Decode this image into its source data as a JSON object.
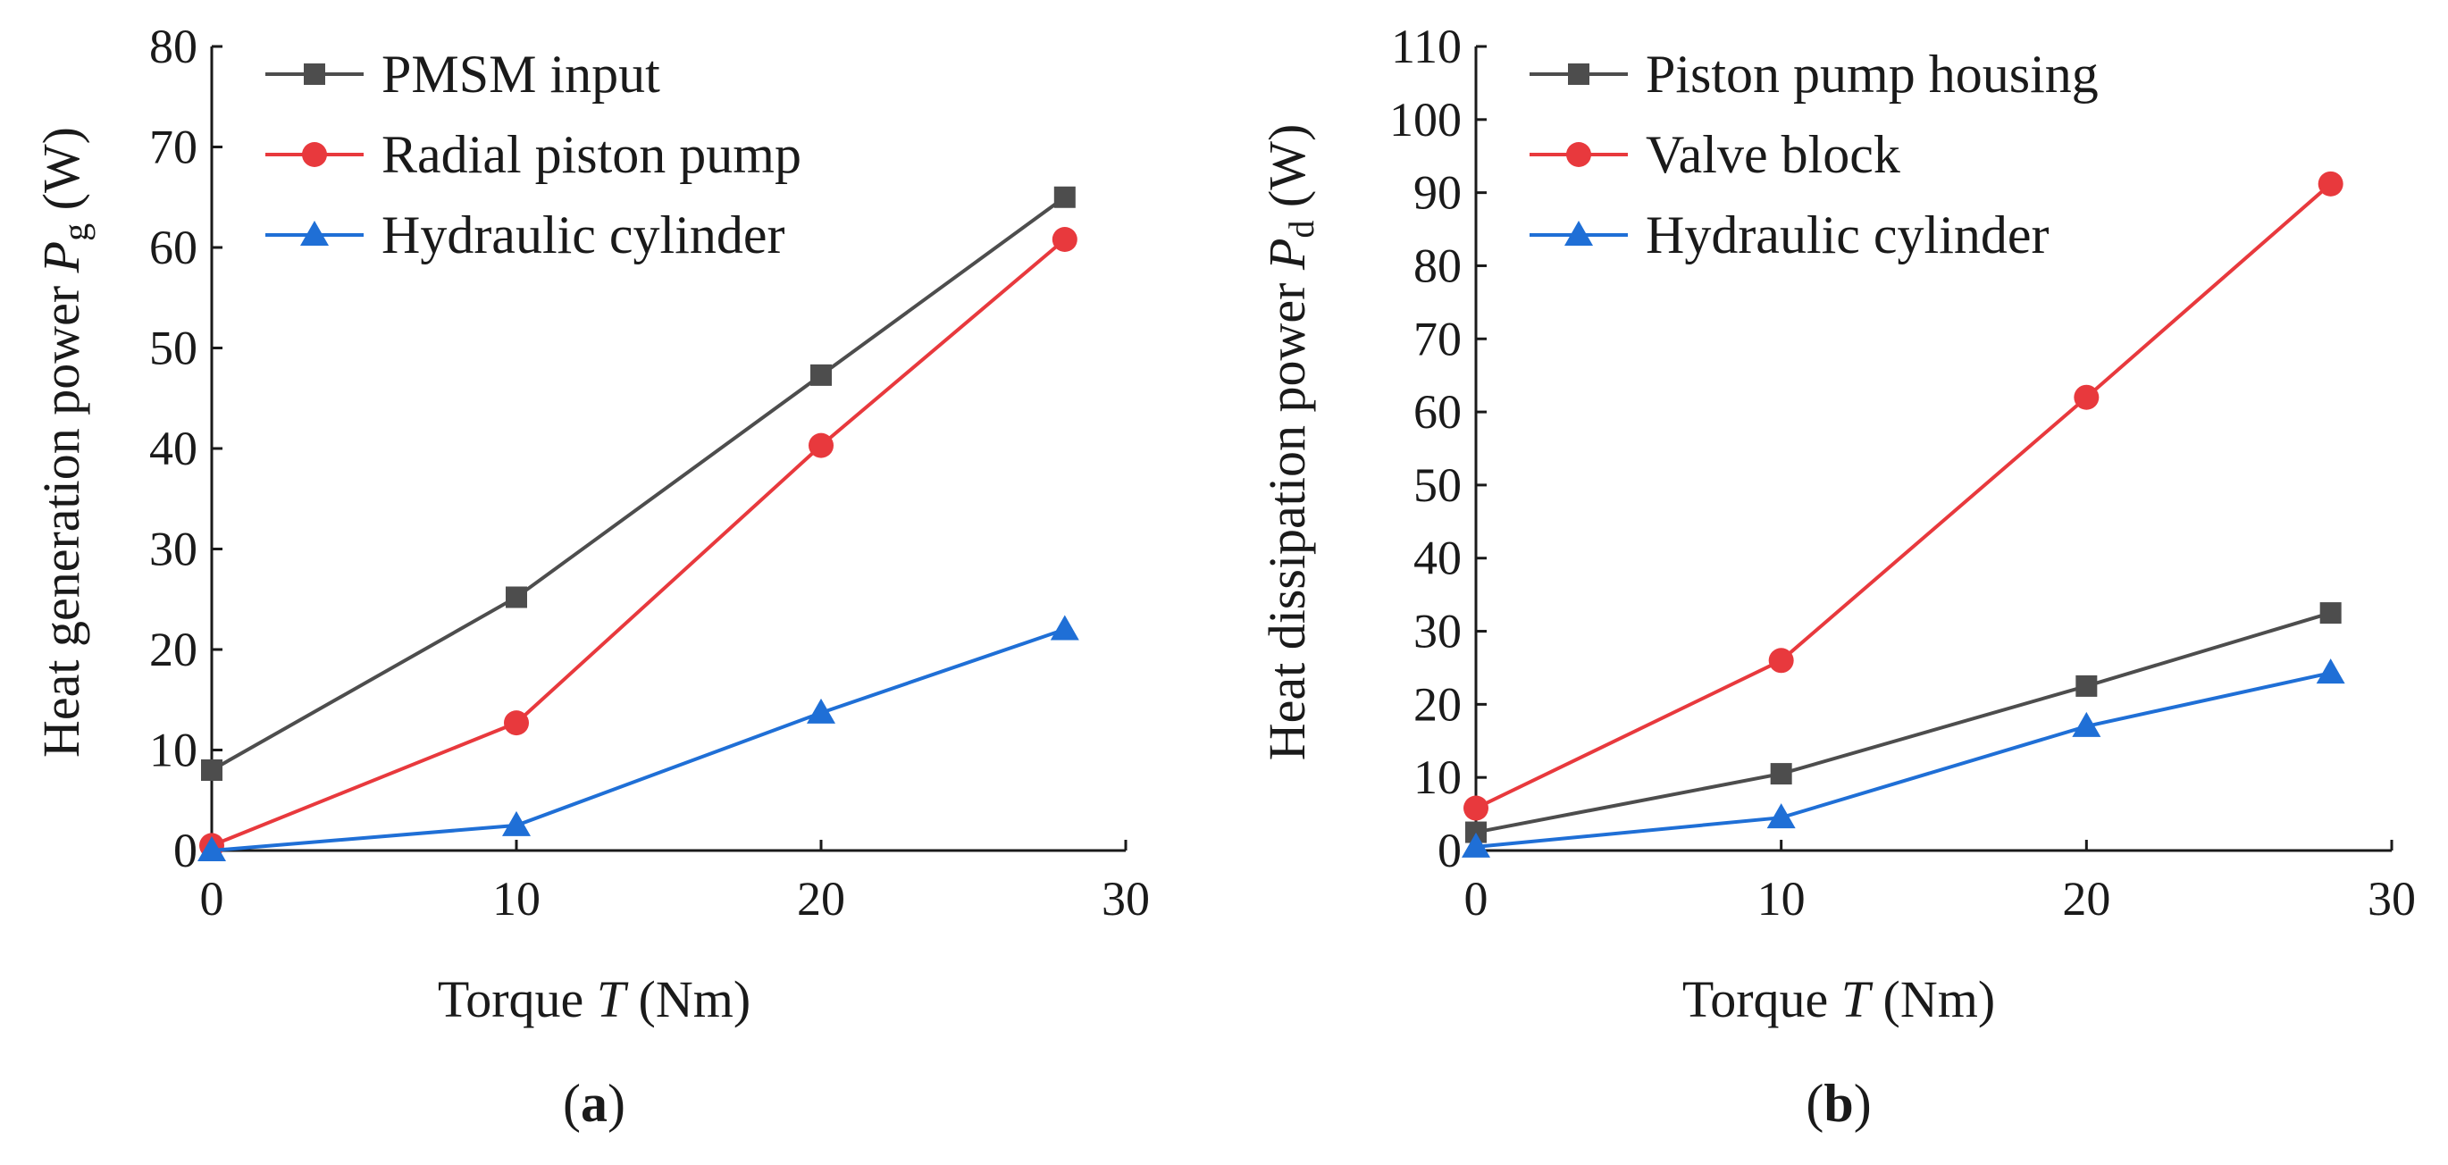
{
  "chart_data": [
    {
      "panel": "a",
      "panel_label": {
        "open": "(",
        "letter": "a",
        "close": ")"
      },
      "type": "line",
      "xlabel": {
        "prefix": "Torque ",
        "symbol": "T",
        "suffix": " (Nm)"
      },
      "ylabel": {
        "prefix": "Heat generation power ",
        "symbol": "P",
        "subscript": "g",
        "suffix": " (W)"
      },
      "xlim": [
        0,
        30
      ],
      "ylim": [
        0,
        80
      ],
      "xticks": [
        0,
        10,
        20,
        30
      ],
      "yticks": [
        0,
        10,
        20,
        30,
        40,
        50,
        60,
        70,
        80
      ],
      "grid": false,
      "legend_position": "top-left",
      "x": [
        0,
        10,
        20,
        28
      ],
      "series": [
        {
          "name": "PMSM input",
          "marker": "square",
          "color": "#4d4d4d",
          "values": [
            8,
            25.2,
            47.3,
            65
          ]
        },
        {
          "name": "Radial piston pump",
          "marker": "circle",
          "color": "#e8393d",
          "values": [
            0.5,
            12.7,
            40.3,
            60.8
          ]
        },
        {
          "name": "Hydraulic cylinder",
          "marker": "triangle",
          "color": "#1f6fd6",
          "values": [
            0,
            2.5,
            13.7,
            22
          ]
        }
      ]
    },
    {
      "panel": "b",
      "panel_label": {
        "open": "(",
        "letter": "b",
        "close": ")"
      },
      "type": "line",
      "xlabel": {
        "prefix": "Torque ",
        "symbol": "T",
        "suffix": " (Nm)"
      },
      "ylabel": {
        "prefix": "Heat dissipation power ",
        "symbol": "P",
        "subscript": "d",
        "suffix": " (W)"
      },
      "xlim": [
        0,
        30
      ],
      "ylim": [
        0,
        110
      ],
      "xticks": [
        0,
        10,
        20,
        30
      ],
      "yticks": [
        0,
        10,
        20,
        30,
        40,
        50,
        60,
        70,
        80,
        90,
        100,
        110
      ],
      "grid": false,
      "legend_position": "top-left",
      "x": [
        0,
        10,
        20,
        28
      ],
      "series": [
        {
          "name": "Piston pump housing",
          "marker": "square",
          "color": "#4d4d4d",
          "values": [
            2.5,
            10.5,
            22.5,
            32.5
          ]
        },
        {
          "name": "Valve block",
          "marker": "circle",
          "color": "#e8393d",
          "values": [
            5.8,
            26,
            62,
            91.2
          ]
        },
        {
          "name": "Hydraulic cylinder",
          "marker": "triangle",
          "color": "#1f6fd6",
          "values": [
            0.5,
            4.5,
            17,
            24.3
          ]
        }
      ]
    }
  ]
}
